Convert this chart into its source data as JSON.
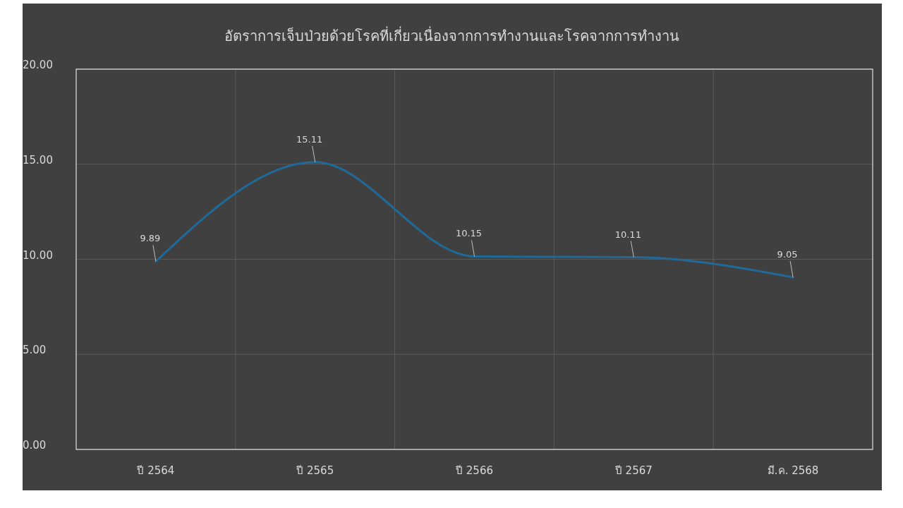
{
  "chart_data": {
    "type": "line",
    "title": "อัตราการเจ็บป่วยด้วยโรคที่เกี่ยวเนื่องจากการทำงานและโรคจากการทำงาน",
    "categories": [
      "ปี 2564",
      "ปี 2565",
      "ปี 2566",
      "ปี 2567",
      "มี.ค. 2568"
    ],
    "series": [
      {
        "color": "#1f6a99",
        "values": [
          9.89,
          15.11,
          10.15,
          10.11,
          9.05
        ]
      }
    ],
    "ylim": [
      0,
      20
    ],
    "yticks": [
      {
        "value": 0,
        "label": "0.00"
      },
      {
        "value": 5,
        "label": "5.00"
      },
      {
        "value": 10,
        "label": "10.00"
      },
      {
        "value": 15,
        "label": "15.00"
      },
      {
        "value": 20,
        "label": "20.00"
      }
    ],
    "grid": true,
    "data_labels": true,
    "marker": "none",
    "line_style": "solid"
  }
}
